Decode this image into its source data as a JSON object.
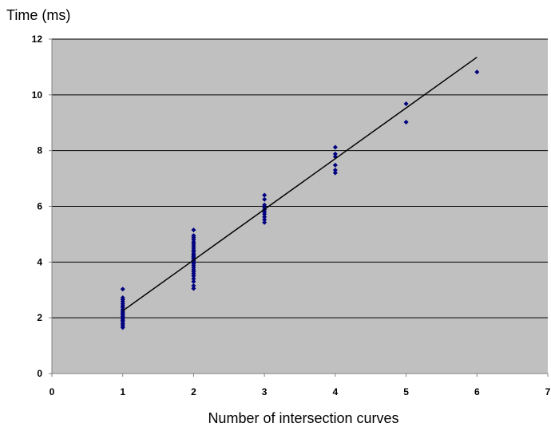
{
  "chart_data": {
    "type": "scatter",
    "title": "",
    "ylabel": "Time (ms)",
    "xlabel": "Number of intersection curves",
    "xlim": [
      0,
      7
    ],
    "ylim": [
      0,
      12
    ],
    "x_ticks": [
      0,
      1,
      2,
      3,
      4,
      5,
      6,
      7
    ],
    "y_ticks": [
      0,
      2,
      4,
      6,
      8,
      10,
      12
    ],
    "grid": "horizontal",
    "legend": "none",
    "colors": {
      "plot_background": "#c0c0c0",
      "marker": "#000080",
      "trendline": "#000000",
      "gridline": "#000000"
    },
    "series": [
      {
        "marker": "diamond",
        "points": [
          [
            1,
            3.03
          ],
          [
            1,
            2.72
          ],
          [
            1,
            2.65
          ],
          [
            1,
            2.58
          ],
          [
            1,
            2.5
          ],
          [
            1,
            2.43
          ],
          [
            1,
            2.37
          ],
          [
            1,
            2.3
          ],
          [
            1,
            2.25
          ],
          [
            1,
            2.2
          ],
          [
            1,
            2.15
          ],
          [
            1,
            2.1
          ],
          [
            1,
            2.05
          ],
          [
            1,
            2.0
          ],
          [
            1,
            1.95
          ],
          [
            1,
            1.9
          ],
          [
            1,
            1.85
          ],
          [
            1,
            1.78
          ],
          [
            1,
            1.72
          ],
          [
            1,
            1.65
          ],
          [
            2,
            5.15
          ],
          [
            2,
            4.95
          ],
          [
            2,
            4.88
          ],
          [
            2,
            4.8
          ],
          [
            2,
            4.72
          ],
          [
            2,
            4.65
          ],
          [
            2,
            4.58
          ],
          [
            2,
            4.5
          ],
          [
            2,
            4.43
          ],
          [
            2,
            4.37
          ],
          [
            2,
            4.3
          ],
          [
            2,
            4.25
          ],
          [
            2,
            4.2
          ],
          [
            2,
            4.15
          ],
          [
            2,
            4.1
          ],
          [
            2,
            4.05
          ],
          [
            2,
            4.0
          ],
          [
            2,
            3.95
          ],
          [
            2,
            3.88
          ],
          [
            2,
            3.8
          ],
          [
            2,
            3.72
          ],
          [
            2,
            3.65
          ],
          [
            2,
            3.58
          ],
          [
            2,
            3.5
          ],
          [
            2,
            3.4
          ],
          [
            2,
            3.3
          ],
          [
            2,
            3.15
          ],
          [
            2,
            3.05
          ],
          [
            3,
            6.4
          ],
          [
            3,
            6.25
          ],
          [
            3,
            6.05
          ],
          [
            3,
            5.95
          ],
          [
            3,
            5.88
          ],
          [
            3,
            5.8
          ],
          [
            3,
            5.72
          ],
          [
            3,
            5.62
          ],
          [
            3,
            5.52
          ],
          [
            3,
            5.42
          ],
          [
            4,
            8.12
          ],
          [
            4,
            7.88
          ],
          [
            4,
            7.78
          ],
          [
            4,
            7.48
          ],
          [
            4,
            7.3
          ],
          [
            4,
            7.2
          ],
          [
            5,
            9.68
          ],
          [
            5,
            9.02
          ],
          [
            6,
            10.82
          ]
        ]
      }
    ],
    "trendline": {
      "x": [
        1,
        6
      ],
      "y": [
        2.25,
        11.35
      ]
    }
  }
}
